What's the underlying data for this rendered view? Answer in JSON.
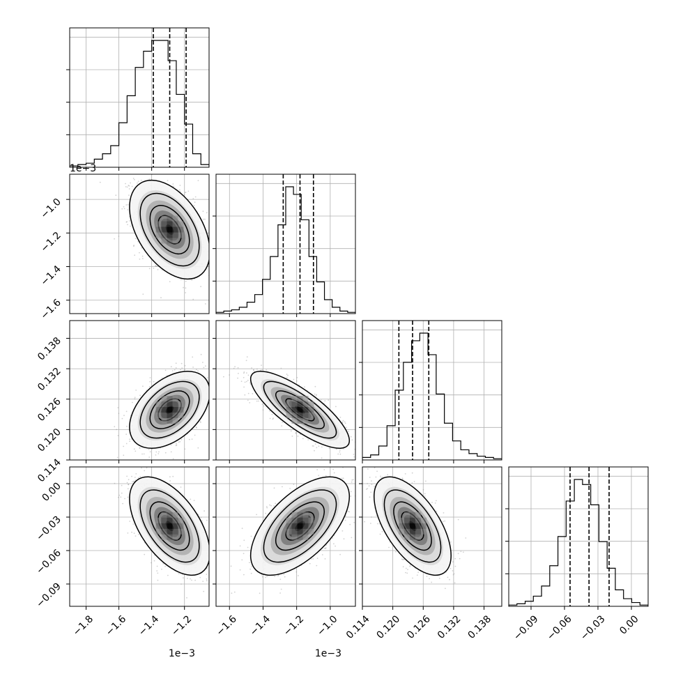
{
  "chart_data": {
    "type": "corner",
    "parameters": [
      {
        "range": [
          -1.9,
          -1.05
        ],
        "ticks": [
          -1.8,
          -1.6,
          -1.4,
          -1.2
        ],
        "tick_labels": [
          "−1.8",
          "−1.6",
          "−1.4",
          "−1.2"
        ],
        "offset_label": "1e−3",
        "quantiles": [
          -1.39,
          -1.29,
          -1.19
        ]
      },
      {
        "range": [
          -1.68,
          -0.85
        ],
        "ticks": [
          -1.6,
          -1.4,
          -1.2,
          -1.0
        ],
        "tick_labels": [
          "−1.6",
          "−1.4",
          "−1.2",
          "−1.0"
        ],
        "offset_label": "1e−3",
        "quantiles": [
          -1.28,
          -1.18,
          -1.1
        ]
      },
      {
        "range": [
          0.114,
          0.1415
        ],
        "ticks": [
          0.114,
          0.12,
          0.126,
          0.132,
          0.138
        ],
        "tick_labels": [
          "0.114",
          "0.120",
          "0.126",
          "0.132",
          "0.138"
        ],
        "offset_label": "",
        "quantiles": [
          0.1212,
          0.1239,
          0.1271
        ]
      },
      {
        "range": [
          -0.11,
          0.015
        ],
        "ticks": [
          -0.09,
          -0.06,
          -0.03,
          0.0
        ],
        "tick_labels": [
          "−0.09",
          "−0.06",
          "−0.03",
          "0.00"
        ],
        "offset_label": "",
        "quantiles": [
          -0.055,
          -0.038,
          -0.02
        ]
      }
    ],
    "row_axis_labels": [
      {
        "row": 1,
        "ticks": [
          -1.0,
          -1.2,
          -1.4,
          -1.6
        ],
        "tick_labels": [
          "−1.0",
          "−1.2",
          "−1.4",
          "−1.6"
        ],
        "offset_label": "1e−3"
      },
      {
        "row": 2,
        "ticks": [
          0.138,
          0.132,
          0.126,
          0.12,
          0.114
        ],
        "tick_labels": [
          "0.138",
          "0.132",
          "0.126",
          "0.120",
          "0.114"
        ]
      },
      {
        "row": 3,
        "ticks": [
          0.0,
          -0.03,
          -0.06,
          -0.09
        ],
        "tick_labels": [
          "0.00",
          "−0.03",
          "−0.06",
          "−0.09"
        ]
      }
    ],
    "histograms": [
      [
        1,
        2,
        3,
        6,
        10,
        16,
        33,
        53,
        74,
        86,
        94,
        94,
        79,
        54,
        32,
        10,
        2
      ],
      [
        1,
        2,
        3,
        5,
        9,
        15,
        27,
        45,
        70,
        100,
        94,
        74,
        45,
        25,
        11,
        5,
        2,
        1
      ],
      [
        2,
        4,
        11,
        27,
        55,
        77,
        94,
        100,
        83,
        52,
        29,
        15,
        8,
        5,
        3,
        2,
        1
      ],
      [
        1,
        2,
        4,
        8,
        16,
        32,
        55,
        83,
        100,
        96,
        80,
        51,
        30,
        13,
        6,
        3,
        1
      ]
    ],
    "joint": [
      {
        "row": 1,
        "col": 0,
        "mean": [
          -1.29,
          -1.18
        ],
        "sd": [
          0.1,
          0.12
        ],
        "rho": -0.45
      },
      {
        "row": 2,
        "col": 0,
        "mean": [
          -1.29,
          0.1239
        ],
        "sd": [
          0.1,
          0.0031
        ],
        "rho": 0.45
      },
      {
        "row": 2,
        "col": 1,
        "mean": [
          -1.18,
          0.1239
        ],
        "sd": [
          0.12,
          0.0031
        ],
        "rho": -0.8
      },
      {
        "row": 3,
        "col": 0,
        "mean": [
          -1.29,
          -0.038
        ],
        "sd": [
          0.1,
          0.018
        ],
        "rho": -0.55
      },
      {
        "row": 3,
        "col": 1,
        "mean": [
          -1.18,
          -0.038
        ],
        "sd": [
          0.12,
          0.018
        ],
        "rho": 0.6
      },
      {
        "row": 3,
        "col": 2,
        "mean": [
          0.1239,
          -0.038
        ],
        "sd": [
          0.0031,
          0.018
        ],
        "rho": -0.6
      }
    ],
    "grid": true
  }
}
